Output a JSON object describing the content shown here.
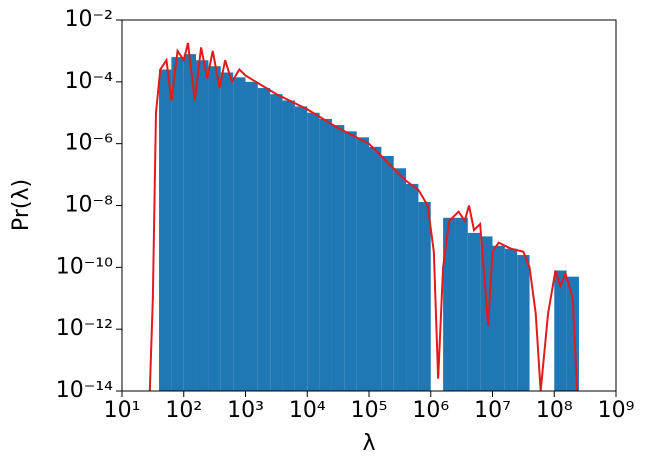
{
  "chart_data": {
    "type": "histogram",
    "xlabel": "λ",
    "ylabel": "Pr(λ)",
    "xscale": "log",
    "yscale": "log",
    "color": "#1f77b4",
    "bins": [
      39.8,
      63.1,
      100,
      158,
      251,
      398,
      631,
      1000,
      1585,
      2512,
      3981,
      6310,
      10000,
      15850,
      25120,
      39810,
      63100,
      100000,
      158500,
      251200,
      398100,
      631000,
      1000000,
      1585000,
      2512000,
      3981000,
      6310000,
      10000000,
      15850000,
      25120000,
      39810000,
      63100000,
      100000000,
      158500000,
      251200000
    ],
    "values": [
      0.00025,
      0.00063,
      0.00079,
      0.0005,
      0.00032,
      0.0002,
      0.00014,
      0.0001,
      6.3e-05,
      4e-05,
      2.5e-05,
      1.6e-05,
      1e-05,
      6.3e-06,
      4e-06,
      2.5e-06,
      1.6e-06,
      7.9e-07,
      4e-07,
      1.6e-07,
      5e-08,
      1.3e-08,
      0,
      4e-09,
      4e-09,
      1.3e-09,
      1e-09,
      5e-10,
      4e-10,
      2.5e-10,
      0,
      0,
      7.9e-11,
      5e-11
    ],
    "line": {
      "type": "line",
      "color": "#e31a1c",
      "x": [
        28.2,
        31.6,
        35.5,
        41.7,
        52.5,
        63.1,
        79.4,
        100,
        117,
        151,
        191,
        240,
        295,
        380,
        468,
        603,
        794,
        1000,
        3162,
        10000,
        31620,
        100000,
        199500,
        398100,
        631000,
        891300,
        1122000,
        1318000,
        1585000,
        1995000,
        2818000,
        3548000,
        4169000,
        5012000,
        6310000,
        8511000,
        10000000,
        12590000,
        19950000,
        31620000,
        39810000,
        50120000,
        60260000,
        79430000,
        104700000,
        125900000,
        151400000,
        199500000,
        234400000
      ],
      "values": [
        1e-14,
        1e-11,
        1e-05,
        0.00025,
        0.0005,
        2.5e-05,
        0.001,
        0.0005,
        0.0018,
        2.5e-05,
        0.0013,
        0.00013,
        0.001,
        6.3e-05,
        0.0005,
        0.0001,
        0.00025,
        0.00016,
        4e-05,
        1.3e-05,
        3.2e-06,
        1e-06,
        2.5e-07,
        6.3e-08,
        3.2e-08,
        1e-08,
        3.2e-10,
        2.5e-14,
        1e-10,
        3.2e-09,
        6.3e-09,
        3.2e-09,
        1e-08,
        1.6e-09,
        2.5e-09,
        1.3e-12,
        3.2e-10,
        6.3e-10,
        4e-10,
        3.2e-10,
        1e-10,
        3.2e-12,
        1e-14,
        3.2e-12,
        7.9e-11,
        2.5e-11,
        6.3e-11,
        1e-11,
        1e-14
      ]
    },
    "xlim": [
      10,
      1000000000
    ],
    "ylim": [
      1e-14,
      0.01
    ],
    "xticks": [
      {
        "value": 10,
        "label": "10¹"
      },
      {
        "value": 100,
        "label": "10²"
      },
      {
        "value": 1000,
        "label": "10³"
      },
      {
        "value": 10000,
        "label": "10⁴"
      },
      {
        "value": 100000,
        "label": "10⁵"
      },
      {
        "value": 1000000,
        "label": "10⁶"
      },
      {
        "value": 10000000,
        "label": "10⁷"
      },
      {
        "value": 100000000,
        "label": "10⁸"
      },
      {
        "value": 1000000000,
        "label": "10⁹"
      }
    ],
    "yticks": [
      {
        "value": 1e-14,
        "label": "10⁻¹⁴"
      },
      {
        "value": 1e-12,
        "label": "10⁻¹²"
      },
      {
        "value": 1e-10,
        "label": "10⁻¹⁰"
      },
      {
        "value": 1e-08,
        "label": "10⁻⁸"
      },
      {
        "value": 1e-06,
        "label": "10⁻⁶"
      },
      {
        "value": 0.0001,
        "label": "10⁻⁴"
      },
      {
        "value": 0.01,
        "label": "10⁻²"
      }
    ]
  }
}
